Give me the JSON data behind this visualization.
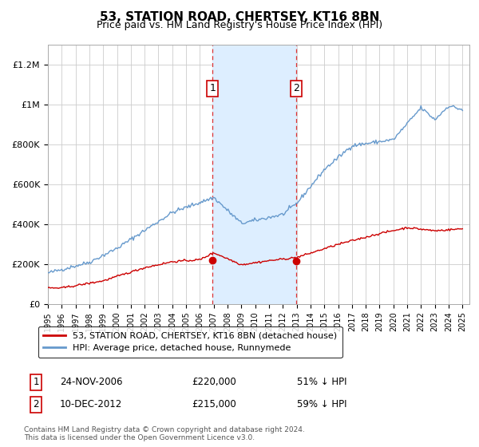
{
  "title": "53, STATION ROAD, CHERTSEY, KT16 8BN",
  "subtitle": "Price paid vs. HM Land Registry's House Price Index (HPI)",
  "legend_label_red": "53, STATION ROAD, CHERTSEY, KT16 8BN (detached house)",
  "legend_label_blue": "HPI: Average price, detached house, Runnymede",
  "annotation1_label": "1",
  "annotation1_date": "24-NOV-2006",
  "annotation1_price": "£220,000",
  "annotation1_hpi": "51% ↓ HPI",
  "annotation2_label": "2",
  "annotation2_date": "10-DEC-2012",
  "annotation2_price": "£215,000",
  "annotation2_hpi": "59% ↓ HPI",
  "footer": "Contains HM Land Registry data © Crown copyright and database right 2024.\nThis data is licensed under the Open Government Licence v3.0.",
  "ylim": [
    0,
    1300000
  ],
  "yticks": [
    0,
    200000,
    400000,
    600000,
    800000,
    1000000,
    1200000
  ],
  "ytick_labels": [
    "£0",
    "£200K",
    "£400K",
    "£600K",
    "£800K",
    "£1M",
    "£1.2M"
  ],
  "sale1_year": 2006.92,
  "sale1_value": 220000,
  "sale2_year": 2012.95,
  "sale2_value": 215000,
  "shaded_region_x1": 2006.92,
  "shaded_region_x2": 2012.95,
  "red_line_color": "#cc0000",
  "blue_line_color": "#6699cc",
  "shade_color": "#ddeeff",
  "grid_color": "#cccccc",
  "background_color": "#ffffff",
  "xmin": 1995,
  "xmax": 2025.5
}
